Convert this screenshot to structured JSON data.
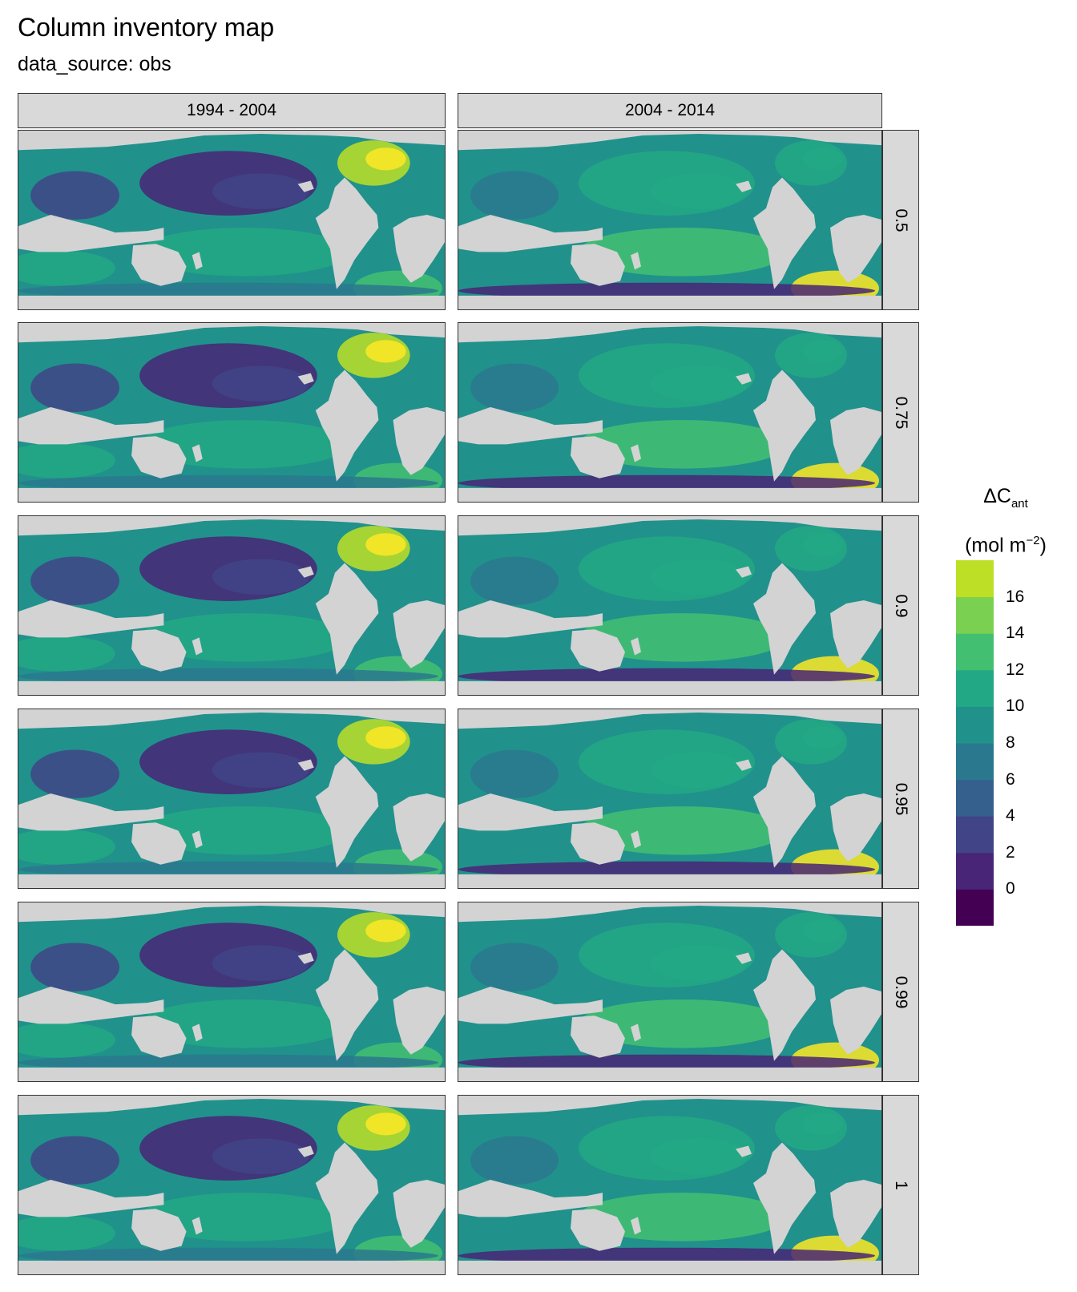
{
  "title": "Column inventory map",
  "subtitle": "data_source: obs",
  "columns": [
    "1994 - 2004",
    "2004 - 2014"
  ],
  "rows": [
    "0.5",
    "0.75",
    "0.9",
    "0.95",
    "0.99",
    "1"
  ],
  "legend": {
    "title_main": "ΔC",
    "title_sub": "ant",
    "unit_main": "(mol m",
    "unit_sup": "−2",
    "unit_close": ")",
    "ticks": [
      "16",
      "14",
      "12",
      "10",
      "8",
      "6",
      "4",
      "2",
      "0"
    ],
    "tick_values": [
      16,
      14,
      12,
      10,
      8,
      6,
      4,
      2,
      0
    ],
    "breaks": [
      -2,
      0,
      2,
      4,
      6,
      8,
      10,
      12,
      14,
      16,
      18
    ],
    "colors": [
      "#440154",
      "#482576",
      "#414487",
      "#35608d",
      "#2a788e",
      "#21918c",
      "#22a884",
      "#43bf71",
      "#7ad151",
      "#bddf26",
      "#fde725"
    ]
  },
  "colors": {
    "land": "#d3d3d3",
    "panel_border": "#333333",
    "strip": "#d9d9d9"
  }
}
